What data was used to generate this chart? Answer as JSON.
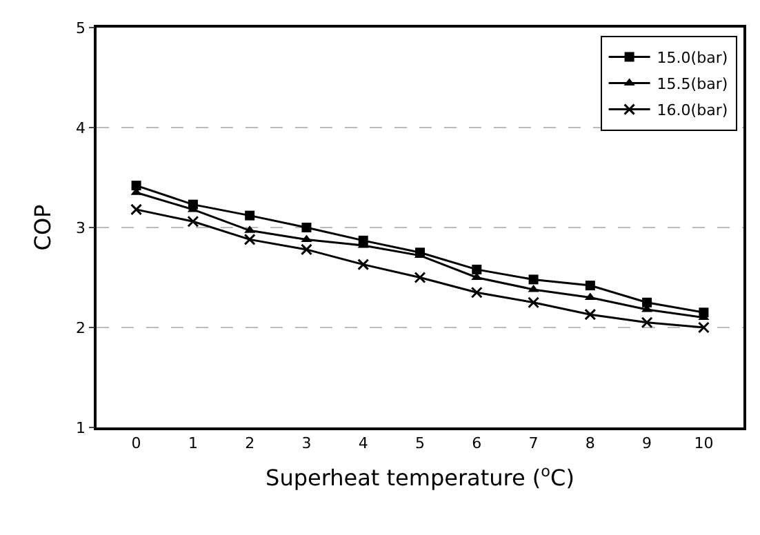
{
  "chart_data": {
    "type": "line",
    "xlabel": "Superheat temperature ($^{o}$C)",
    "ylabel": "COP",
    "x": [
      0,
      1,
      2,
      3,
      4,
      5,
      6,
      7,
      8,
      9,
      10
    ],
    "xlim": [
      -0.7,
      10.7
    ],
    "xticks": [
      0,
      1,
      2,
      3,
      4,
      5,
      6,
      7,
      8,
      9,
      10
    ],
    "ylim": [
      1,
      5
    ],
    "yticks": [
      1,
      2,
      3,
      4,
      5
    ],
    "grid": "y",
    "legend": "top right",
    "line_style": "solid",
    "series": [
      {
        "name": "15.0(bar)",
        "color": "#000000",
        "marker": "square",
        "values": [
          3.42,
          3.23,
          3.12,
          3.0,
          2.87,
          2.75,
          2.58,
          2.48,
          2.42,
          2.25,
          2.15
        ]
      },
      {
        "name": "15.5(bar)",
        "color": "#000000",
        "marker": "triangle",
        "values": [
          3.35,
          3.18,
          2.97,
          2.88,
          2.82,
          2.72,
          2.5,
          2.38,
          2.3,
          2.18,
          2.1
        ]
      },
      {
        "name": "16.0(bar)",
        "color": "#000000",
        "marker": "cross",
        "values": [
          3.18,
          3.06,
          2.88,
          2.78,
          2.63,
          2.5,
          2.35,
          2.25,
          2.13,
          2.05,
          2.0
        ]
      }
    ]
  }
}
